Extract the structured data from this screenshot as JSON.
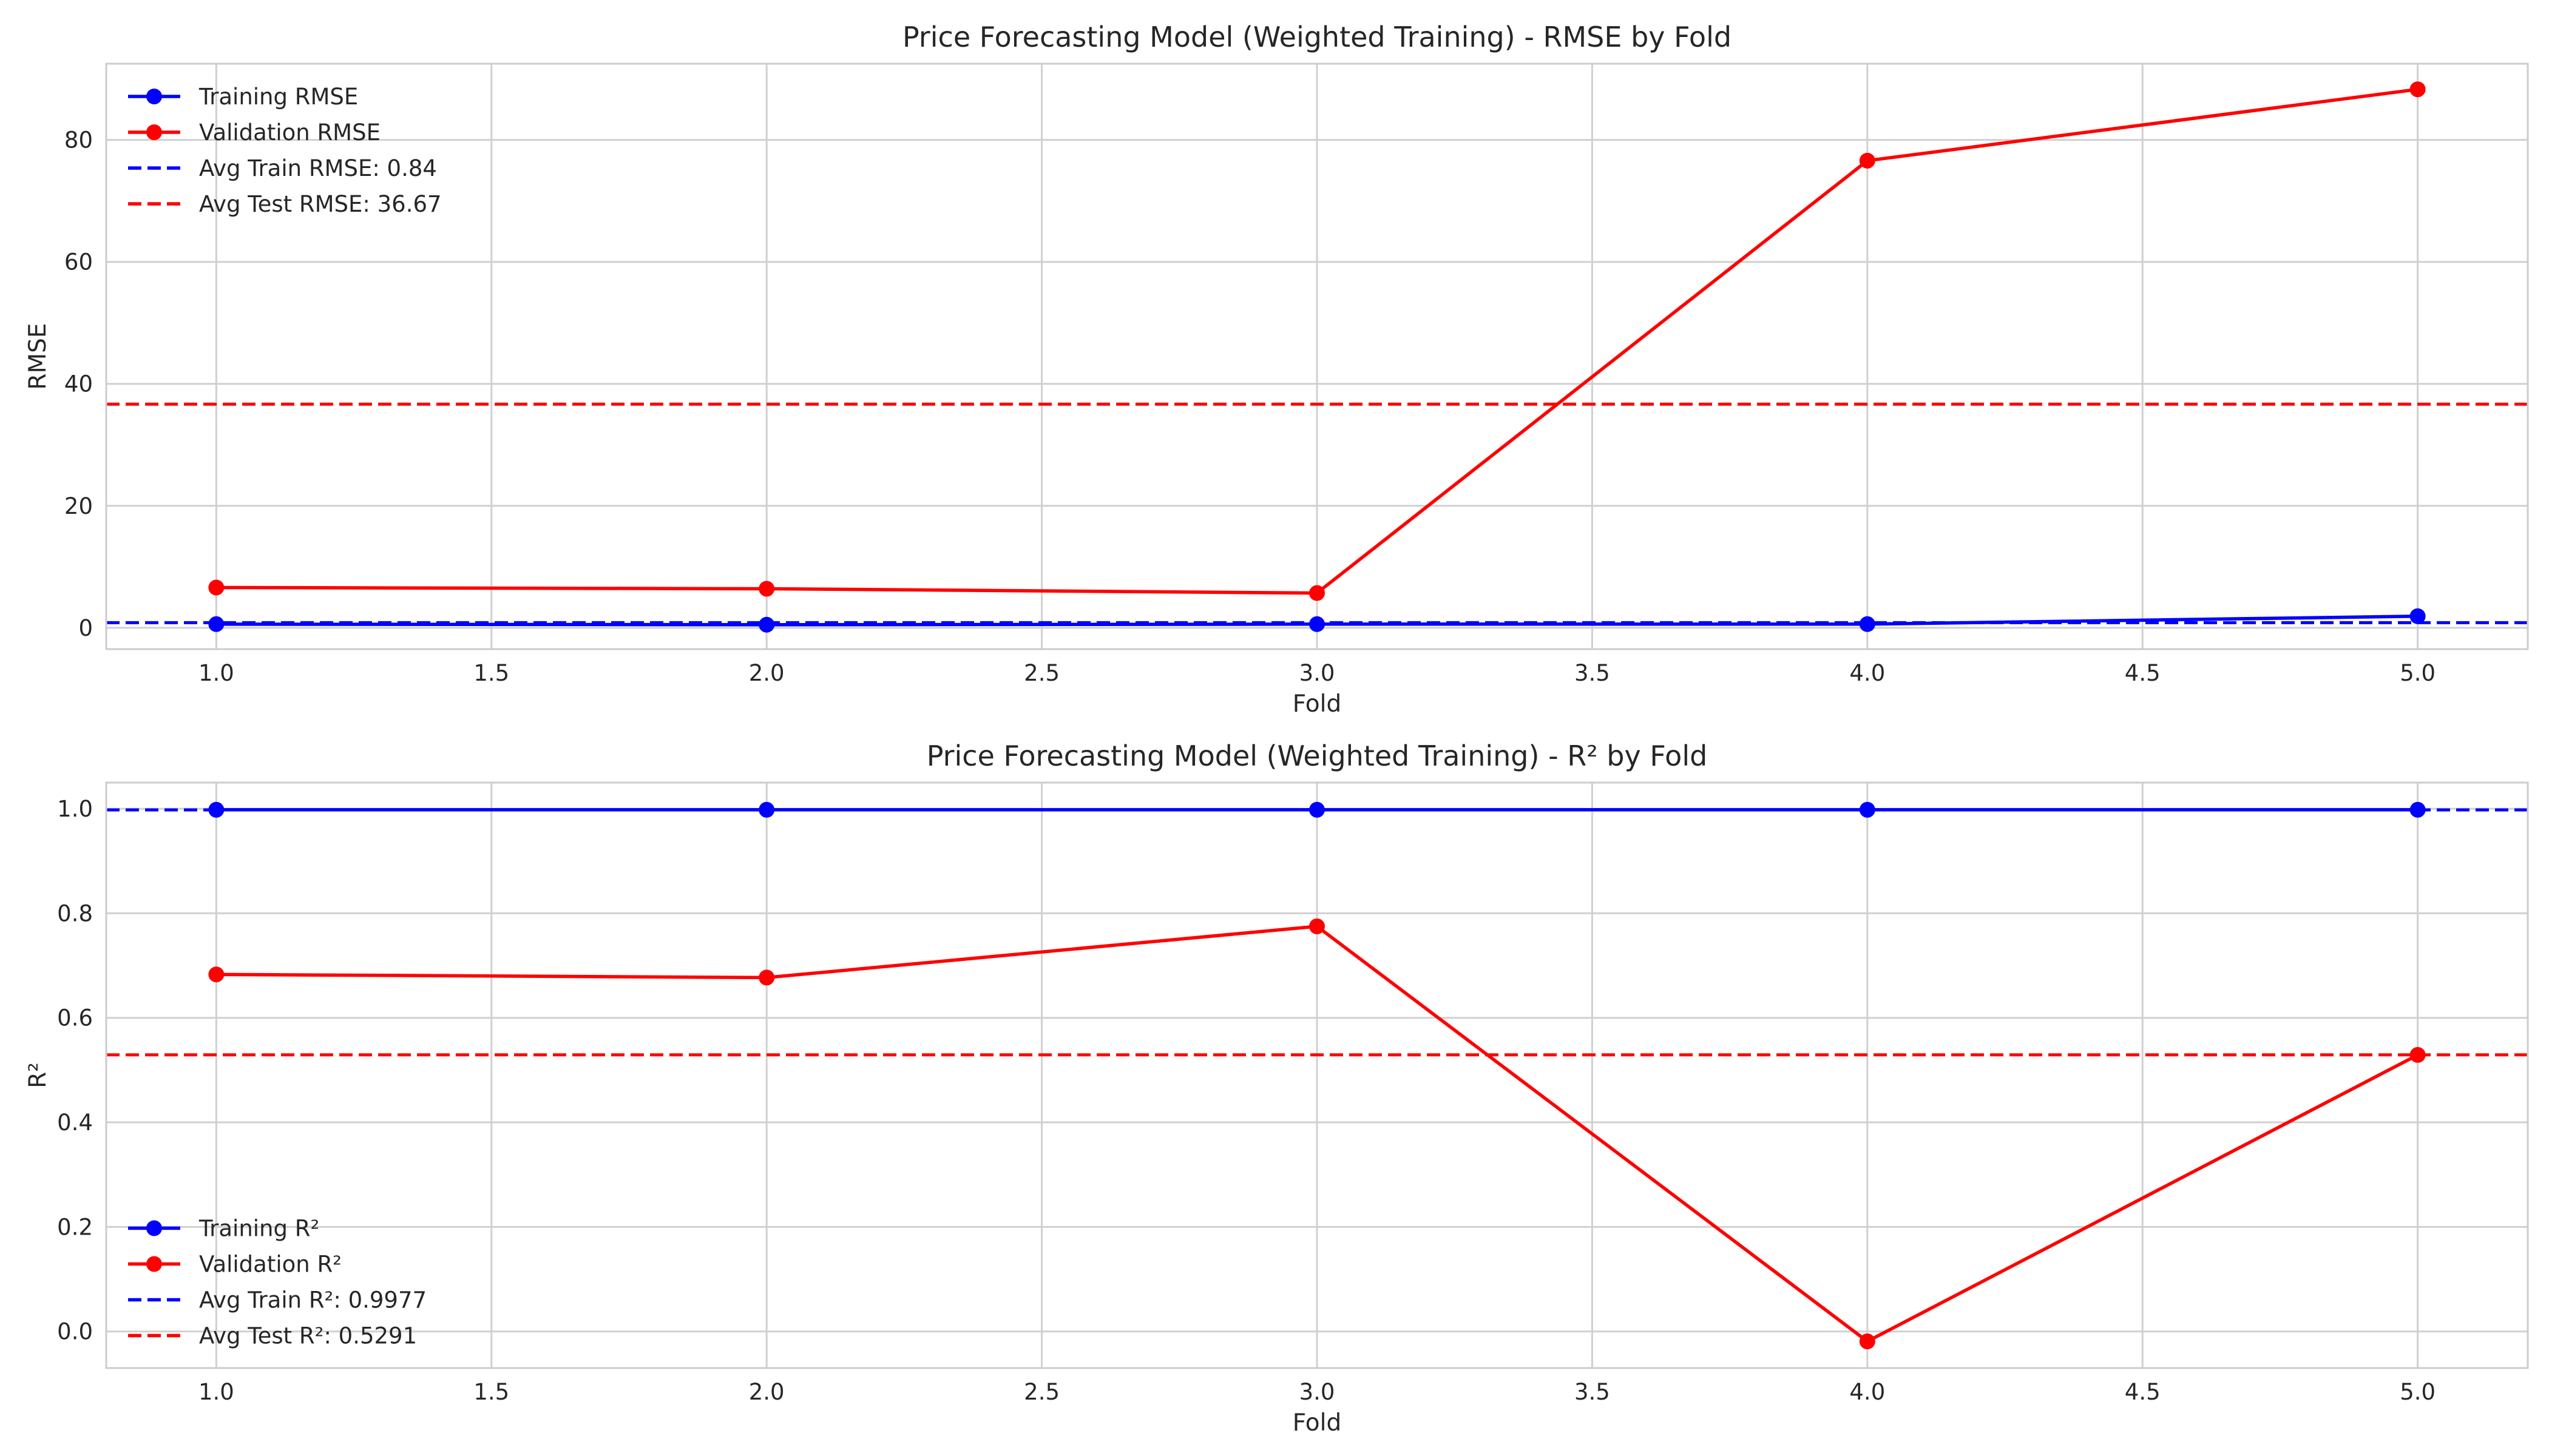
{
  "chart_data": [
    {
      "type": "line",
      "title": "Price Forecasting Model (Weighted Training) - RMSE by Fold",
      "xlabel": "Fold",
      "ylabel": "RMSE",
      "xlim": [
        0.8,
        5.2
      ],
      "ylim": [
        -3.5,
        92.5
      ],
      "xticks": [
        1.0,
        1.5,
        2.0,
        2.5,
        3.0,
        3.5,
        4.0,
        4.5,
        5.0
      ],
      "xtick_labels": [
        "1.0",
        "1.5",
        "2.0",
        "2.5",
        "3.0",
        "3.5",
        "4.0",
        "4.5",
        "5.0"
      ],
      "yticks": [
        0,
        20,
        40,
        60,
        80
      ],
      "ytick_labels": [
        "0",
        "20",
        "40",
        "60",
        "80"
      ],
      "grid": true,
      "legend_position": "top-left",
      "x": [
        1,
        2,
        3,
        4,
        5
      ],
      "series": [
        {
          "name": "Training RMSE",
          "color": "#0000ff",
          "style": "solid",
          "marker": "circle",
          "values": [
            0.6,
            0.5,
            0.6,
            0.6,
            1.9
          ]
        },
        {
          "name": "Validation RMSE",
          "color": "#ff0000",
          "style": "solid",
          "marker": "circle",
          "values": [
            6.6,
            6.4,
            5.7,
            76.6,
            88.3
          ]
        }
      ],
      "hlines": [
        {
          "name": "Avg Train RMSE: 0.84",
          "color": "#0000ff",
          "style": "dashed",
          "value": 0.84
        },
        {
          "name": "Avg Test RMSE: 36.67",
          "color": "#ff0000",
          "style": "dashed",
          "value": 36.67
        }
      ]
    },
    {
      "type": "line",
      "title": "Price Forecasting Model (Weighted Training) - R² by Fold",
      "xlabel": "Fold",
      "ylabel": "R²",
      "xlim": [
        0.8,
        5.2
      ],
      "ylim": [
        -0.07,
        1.05
      ],
      "xticks": [
        1.0,
        1.5,
        2.0,
        2.5,
        3.0,
        3.5,
        4.0,
        4.5,
        5.0
      ],
      "xtick_labels": [
        "1.0",
        "1.5",
        "2.0",
        "2.5",
        "3.0",
        "3.5",
        "4.0",
        "4.5",
        "5.0"
      ],
      "yticks": [
        0.0,
        0.2,
        0.4,
        0.6,
        0.8,
        1.0
      ],
      "ytick_labels": [
        "0.0",
        "0.2",
        "0.4",
        "0.6",
        "0.8",
        "1.0"
      ],
      "grid": true,
      "legend_position": "bottom-left",
      "x": [
        1,
        2,
        3,
        4,
        5
      ],
      "series": [
        {
          "name": "Training R²",
          "color": "#0000ff",
          "style": "solid",
          "marker": "circle",
          "values": [
            0.998,
            0.998,
            0.998,
            0.998,
            0.998
          ]
        },
        {
          "name": "Validation R²",
          "color": "#ff0000",
          "style": "solid",
          "marker": "circle",
          "values": [
            0.683,
            0.677,
            0.775,
            -0.019,
            0.529
          ]
        }
      ],
      "hlines": [
        {
          "name": "Avg Train R²: 0.9977",
          "color": "#0000ff",
          "style": "dashed",
          "value": 0.9977
        },
        {
          "name": "Avg Test R²: 0.5291",
          "color": "#ff0000",
          "style": "dashed",
          "value": 0.5291
        }
      ]
    }
  ]
}
